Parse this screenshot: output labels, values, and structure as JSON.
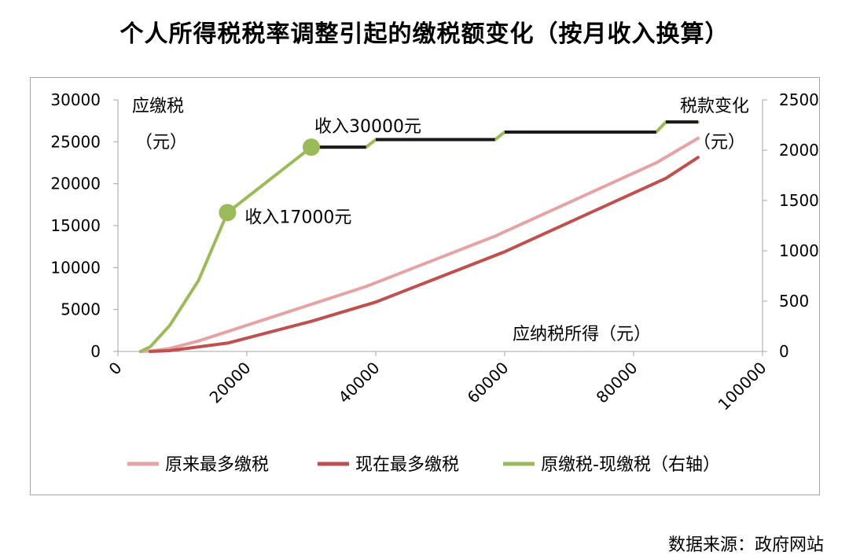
{
  "title": "个人所得税税率调整引起的缴税额变化（按月收入换算）",
  "source": "数据来源：政府网站",
  "colors": {
    "old_tax": "#e6a3a5",
    "new_tax": "#c0504d",
    "diff_green": "#9bbb59",
    "diff_black": "#1a1a1a",
    "grid": "#d9d9d9",
    "axis": "#a6a6a6"
  },
  "chart_data": {
    "type": "line",
    "title": "个人所得税税率调整引起的缴税额变化（按月收入换算）",
    "xlabel": "应纳税所得（元）",
    "ylabel_left": [
      "应缴税",
      "（元）"
    ],
    "ylabel_right": [
      "税款变化",
      "（元）"
    ],
    "xlim": [
      0,
      100000
    ],
    "ylim_left": [
      0,
      30000
    ],
    "ylim_right": [
      0,
      2500
    ],
    "x_ticks": [
      "0",
      "20000",
      "40000",
      "60000",
      "80000",
      "100000"
    ],
    "y_left_ticks": [
      "0",
      "5000",
      "10000",
      "15000",
      "20000",
      "25000",
      "30000"
    ],
    "y_right_ticks": [
      "0",
      "500",
      "1000",
      "1500",
      "2000",
      "2500"
    ],
    "grid": false,
    "legend_position": "bottom",
    "legend": [
      "原来最多缴税",
      "现在最多缴税",
      "原缴税-现缴税（右轴）"
    ],
    "series": [
      {
        "name": "原来最多缴税",
        "axis": "left",
        "x": [
          3500,
          5000,
          8000,
          12500,
          38500,
          58500,
          83500,
          90000
        ],
        "y": [
          0,
          45,
          345,
          1245,
          7745,
          13745,
          22495,
          25420
        ]
      },
      {
        "name": "现在最多缴税",
        "axis": "left",
        "x": [
          5000,
          8000,
          17000,
          30000,
          40000,
          60000,
          85000,
          90000
        ],
        "y": [
          0,
          90,
          990,
          3590,
          5890,
          11890,
          20640,
          23140
        ]
      },
      {
        "name": "原缴税-现缴税（右轴）",
        "axis": "right",
        "x": [
          3500,
          5000,
          8000,
          12500,
          17000,
          30000,
          38500,
          40000,
          58500,
          60000,
          83500,
          85000,
          90000
        ],
        "y": [
          0,
          45,
          255,
          705,
          1380,
          2030,
          2030,
          2105,
          2105,
          2180,
          2180,
          2280,
          2280
        ],
        "flat_segments_black": [
          [
            30000,
            38500
          ],
          [
            40000,
            58500
          ],
          [
            60000,
            83500
          ],
          [
            85000,
            90000
          ]
        ]
      }
    ],
    "annotations": [
      {
        "text": "收入17000元",
        "x": 17000,
        "y_right": 1380
      },
      {
        "text": "收入30000元",
        "x": 30000,
        "y_right": 2030
      }
    ]
  }
}
